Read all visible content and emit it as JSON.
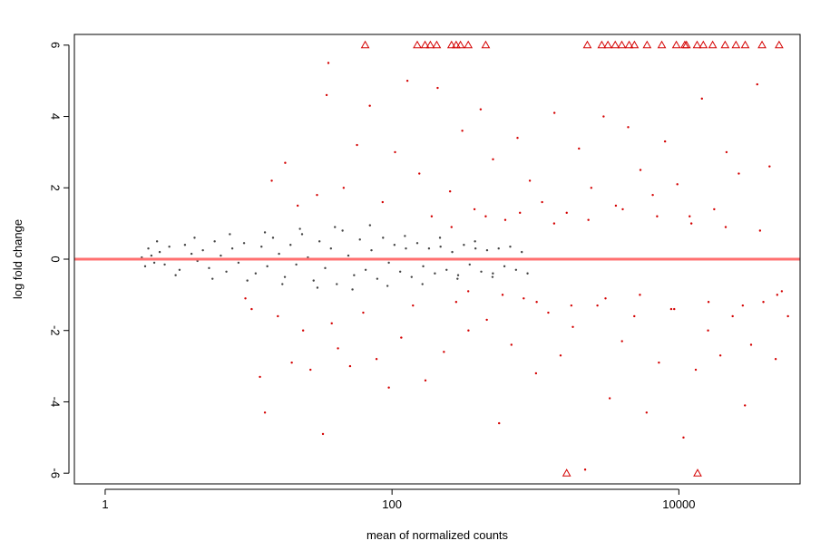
{
  "chart_data": {
    "type": "scatter",
    "title": "",
    "xlabel": "mean of normalized counts",
    "ylabel": "log fold change",
    "xscale": "log10",
    "xlim": [
      0.61,
      70000
    ],
    "ylim": [
      -6.3,
      6.3
    ],
    "xticks": [
      1,
      100,
      10000
    ],
    "xtick_labels": [
      "1",
      "100",
      "10000"
    ],
    "yticks": [
      -6,
      -4,
      -2,
      0,
      2,
      4,
      6
    ],
    "ytick_labels": [
      "-6",
      "-4",
      "-2",
      "0",
      "2",
      "4",
      "6"
    ],
    "grid": false,
    "legend": "none",
    "reference_line": {
      "y": 0,
      "color": "#ff7070"
    },
    "colors": {
      "not_significant": "#444444",
      "significant": "#d40000"
    },
    "series": [
      {
        "marker": "dot",
        "points": [
          [
            1.8,
            0.05
          ],
          [
            1.9,
            -0.2
          ],
          [
            2.0,
            0.3
          ],
          [
            2.1,
            0.1
          ],
          [
            2.2,
            -0.1
          ],
          [
            2.4,
            0.2
          ],
          [
            2.6,
            -0.15
          ],
          [
            2.8,
            0.35
          ],
          [
            3.0,
            0.0
          ],
          [
            3.3,
            -0.3
          ],
          [
            3.6,
            0.4
          ],
          [
            4.0,
            0.15
          ],
          [
            4.4,
            -0.05
          ],
          [
            4.8,
            0.25
          ],
          [
            5.3,
            -0.25
          ],
          [
            5.8,
            0.5
          ],
          [
            6.4,
            0.1
          ],
          [
            7.0,
            -0.35
          ],
          [
            7.7,
            0.3
          ],
          [
            8.5,
            -0.1
          ],
          [
            9.3,
            0.45
          ],
          [
            10.2,
            0.0
          ],
          [
            11.2,
            -0.4
          ],
          [
            12.3,
            0.35
          ],
          [
            13.5,
            -0.2
          ],
          [
            14.8,
            0.6
          ],
          [
            16.3,
            0.15
          ],
          [
            17.9,
            -0.5
          ],
          [
            19.6,
            0.4
          ],
          [
            21.5,
            -0.15
          ],
          [
            23.6,
            0.7
          ],
          [
            25.9,
            0.05
          ],
          [
            28.4,
            -0.6
          ],
          [
            31.2,
            0.5
          ],
          [
            34.2,
            -0.25
          ],
          [
            37.5,
            0.3
          ],
          [
            41.2,
            -0.7
          ],
          [
            45.2,
            0.8
          ],
          [
            49.6,
            0.1
          ],
          [
            54.4,
            -0.45
          ],
          [
            59.7,
            0.55
          ],
          [
            65.5,
            -0.3
          ],
          [
            71.9,
            0.25
          ],
          [
            78.9,
            -0.55
          ],
          [
            86.6,
            0.6
          ],
          [
            95.0,
            -0.1
          ],
          [
            104,
            0.4
          ],
          [
            114,
            -0.35
          ],
          [
            125,
            0.3
          ],
          [
            137,
            -0.5
          ],
          [
            150,
            0.45
          ],
          [
            165,
            -0.2
          ],
          [
            181,
            0.3
          ],
          [
            199,
            -0.4
          ],
          [
            218,
            0.35
          ],
          [
            240,
            -0.3
          ],
          [
            263,
            0.2
          ],
          [
            289,
            -0.45
          ],
          [
            317,
            0.4
          ],
          [
            348,
            -0.15
          ],
          [
            382,
            0.3
          ],
          [
            419,
            -0.35
          ],
          [
            460,
            0.25
          ],
          [
            505,
            -0.4
          ],
          [
            554,
            0.3
          ],
          [
            608,
            -0.2
          ],
          [
            667,
            0.35
          ],
          [
            732,
            -0.3
          ],
          [
            803,
            0.2
          ],
          [
            881,
            -0.4
          ],
          [
            2.3,
            0.5
          ],
          [
            3.1,
            -0.45
          ],
          [
            4.2,
            0.6
          ],
          [
            5.6,
            -0.55
          ],
          [
            7.4,
            0.7
          ],
          [
            9.8,
            -0.6
          ],
          [
            13.0,
            0.75
          ],
          [
            17.2,
            -0.7
          ],
          [
            22.8,
            0.85
          ],
          [
            30.2,
            -0.8
          ],
          [
            40.0,
            0.9
          ],
          [
            53.0,
            -0.85
          ],
          [
            70.2,
            0.95
          ],
          [
            93.0,
            -0.75
          ],
          [
            123,
            0.65
          ],
          [
            163,
            -0.7
          ],
          [
            216,
            0.6
          ],
          [
            286,
            -0.55
          ],
          [
            379,
            0.5
          ],
          [
            502,
            -0.5
          ]
        ]
      },
      {
        "marker": "dot",
        "points": [
          [
            9.5,
            -1.1
          ],
          [
            10.5,
            -1.4
          ],
          [
            12.0,
            -3.3
          ],
          [
            13.0,
            -4.3
          ],
          [
            14.5,
            2.2
          ],
          [
            16.0,
            -1.6
          ],
          [
            18.0,
            2.7
          ],
          [
            20.0,
            -2.9
          ],
          [
            22.0,
            1.5
          ],
          [
            24.0,
            -2.0
          ],
          [
            27.0,
            -3.1
          ],
          [
            30.0,
            1.8
          ],
          [
            33.0,
            -4.9
          ],
          [
            35.0,
            4.6
          ],
          [
            36.0,
            5.5
          ],
          [
            38.0,
            -1.8
          ],
          [
            42.0,
            -2.5
          ],
          [
            46.0,
            2.0
          ],
          [
            51.0,
            -3.0
          ],
          [
            57.0,
            3.2
          ],
          [
            63.0,
            -1.5
          ],
          [
            70.0,
            4.3
          ],
          [
            78.0,
            -2.8
          ],
          [
            86.0,
            1.6
          ],
          [
            95.0,
            -3.6
          ],
          [
            105,
            3.0
          ],
          [
            116,
            -2.2
          ],
          [
            128,
            5.0
          ],
          [
            140,
            -1.3
          ],
          [
            155,
            2.4
          ],
          [
            171,
            -3.4
          ],
          [
            189,
            1.2
          ],
          [
            208,
            4.8
          ],
          [
            230,
            -2.6
          ],
          [
            254,
            1.9
          ],
          [
            280,
            -1.2
          ],
          [
            309,
            3.6
          ],
          [
            341,
            -2.0
          ],
          [
            376,
            1.4
          ],
          [
            415,
            4.2
          ],
          [
            458,
            -1.7
          ],
          [
            506,
            2.8
          ],
          [
            558,
            -4.6
          ],
          [
            616,
            1.1
          ],
          [
            680,
            -2.4
          ],
          [
            750,
            3.4
          ],
          [
            828,
            -1.1
          ],
          [
            914,
            2.2
          ],
          [
            1009,
            -3.2
          ],
          [
            1113,
            1.6
          ],
          [
            1229,
            -1.5
          ],
          [
            1356,
            4.1
          ],
          [
            1497,
            -2.7
          ],
          [
            1652,
            1.3
          ],
          [
            1823,
            -1.9
          ],
          [
            2012,
            3.1
          ],
          [
            2221,
            -5.9
          ],
          [
            2451,
            2.0
          ],
          [
            2705,
            -1.3
          ],
          [
            2986,
            4.0
          ],
          [
            3295,
            -3.9
          ],
          [
            3637,
            1.5
          ],
          [
            4014,
            -2.3
          ],
          [
            4431,
            3.7
          ],
          [
            4890,
            -1.6
          ],
          [
            5397,
            2.5
          ],
          [
            5957,
            -4.3
          ],
          [
            6575,
            1.8
          ],
          [
            7257,
            -2.9
          ],
          [
            8010,
            3.3
          ],
          [
            8840,
            -1.4
          ],
          [
            9757,
            2.1
          ],
          [
            10769,
            -5.0
          ],
          [
            11886,
            1.2
          ],
          [
            13118,
            -3.1
          ],
          [
            14479,
            4.5
          ],
          [
            15980,
            -2.0
          ],
          [
            17637,
            1.4
          ],
          [
            19466,
            -2.7
          ],
          [
            21485,
            3.0
          ],
          [
            23713,
            -1.6
          ],
          [
            26172,
            2.4
          ],
          [
            28886,
            -4.1
          ],
          [
            31882,
            -2.4
          ],
          [
            35188,
            4.9
          ],
          [
            38837,
            -1.2
          ],
          [
            42864,
            2.6
          ],
          [
            47310,
            -2.8
          ],
          [
            52216,
            -0.9
          ],
          [
            57630,
            -1.6
          ],
          [
            260,
            0.9
          ],
          [
            340,
            -0.9
          ],
          [
            450,
            1.2
          ],
          [
            590,
            -1.0
          ],
          [
            780,
            1.3
          ],
          [
            1020,
            -1.2
          ],
          [
            1350,
            1.0
          ],
          [
            1780,
            -1.3
          ],
          [
            2340,
            1.1
          ],
          [
            3080,
            -1.1
          ],
          [
            4060,
            1.4
          ],
          [
            5350,
            -1.0
          ],
          [
            7050,
            1.2
          ],
          [
            9280,
            -1.4
          ],
          [
            12220,
            1.0
          ],
          [
            16100,
            -1.2
          ],
          [
            21200,
            0.9
          ],
          [
            27900,
            -1.3
          ],
          [
            36800,
            0.8
          ],
          [
            48500,
            -1.0
          ]
        ]
      },
      {
        "marker": "triangle",
        "points": [
          [
            65,
            6
          ],
          [
            150,
            6
          ],
          [
            170,
            6
          ],
          [
            185,
            6
          ],
          [
            205,
            6
          ],
          [
            260,
            6
          ],
          [
            280,
            6
          ],
          [
            300,
            6
          ],
          [
            340,
            6
          ],
          [
            450,
            6
          ],
          [
            2300,
            6
          ],
          [
            3200,
            6
          ],
          [
            3600,
            6
          ],
          [
            4000,
            6
          ],
          [
            4900,
            6
          ],
          [
            6000,
            6
          ],
          [
            7600,
            6
          ],
          [
            9600,
            6
          ],
          [
            11300,
            6
          ],
          [
            13400,
            6
          ],
          [
            14800,
            6
          ],
          [
            17200,
            6
          ],
          [
            21000,
            6
          ],
          [
            25000,
            6
          ],
          [
            29000,
            6
          ],
          [
            38000,
            6
          ],
          [
            50000,
            6
          ],
          [
            11000,
            6
          ],
          [
            4500,
            6
          ],
          [
            2900,
            6
          ],
          [
            1650,
            -6
          ],
          [
            13500,
            -6
          ]
        ]
      }
    ]
  }
}
